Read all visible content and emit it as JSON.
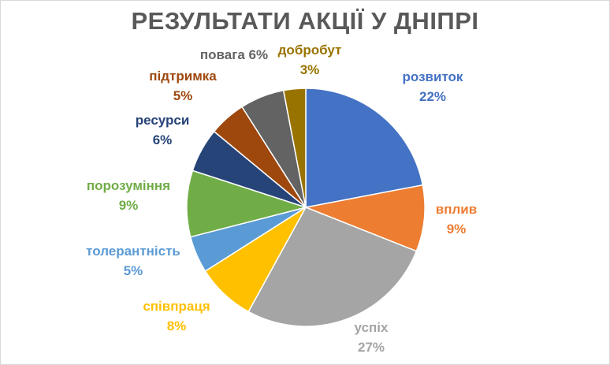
{
  "chart_data": {
    "type": "pie",
    "title": "РЕЗУЛЬТАТИ АКЦІЇ У ДНІПРІ",
    "slices": [
      {
        "name": "розвиток",
        "value": 22,
        "label": "22%",
        "color": "#4472C4"
      },
      {
        "name": "вплив",
        "value": 9,
        "label": "9%",
        "color": "#ED7D31"
      },
      {
        "name": "успіх",
        "value": 27,
        "label": "27%",
        "color": "#A5A5A5"
      },
      {
        "name": "співпраця",
        "value": 8,
        "label": "8%",
        "color": "#FFC000"
      },
      {
        "name": "толерантність",
        "value": 5,
        "label": "5%",
        "color": "#5B9BD5"
      },
      {
        "name": "порозуміння",
        "value": 9,
        "label": "9%",
        "color": "#70AD47"
      },
      {
        "name": "ресурси",
        "value": 6,
        "label": "6%",
        "color": "#264478"
      },
      {
        "name": "підтримка",
        "value": 5,
        "label": "5%",
        "color": "#9E480E"
      },
      {
        "name": "повага",
        "value": 6,
        "label": "6%",
        "color": "#636363"
      },
      {
        "name": "добробут",
        "value": 3,
        "label": "3%",
        "color": "#997300"
      }
    ]
  }
}
